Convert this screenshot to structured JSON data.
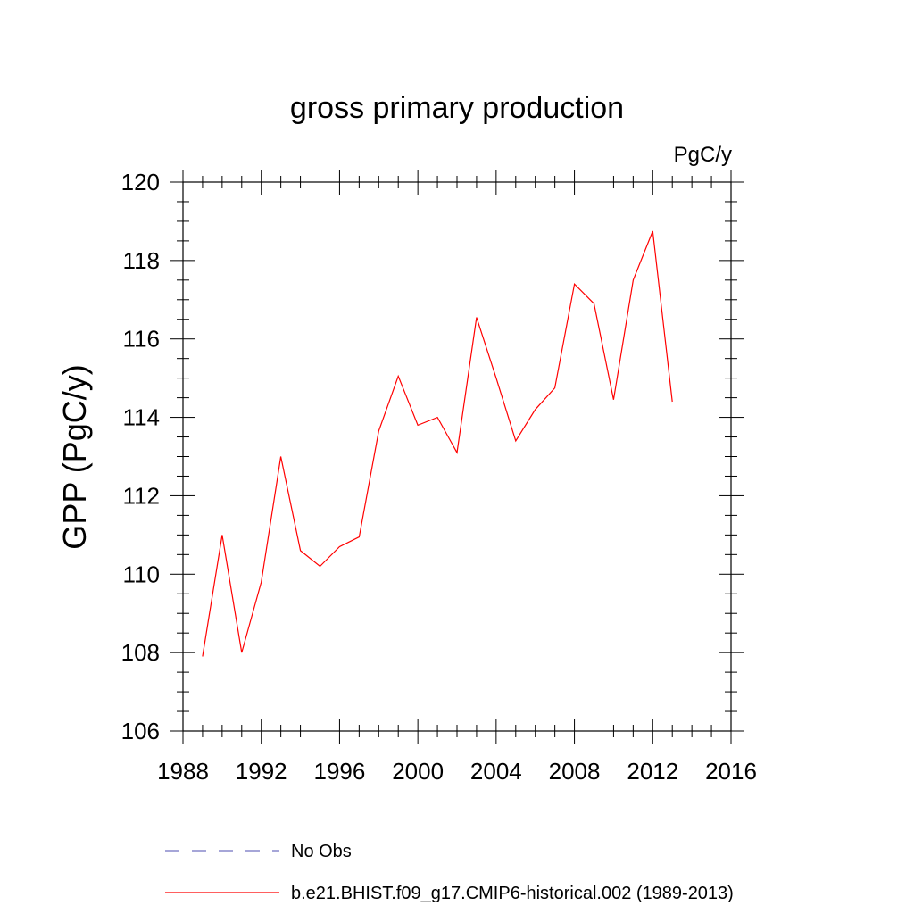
{
  "chart_data": {
    "type": "line",
    "title": "gross primary production",
    "units": "PgC/y",
    "xlabel": "",
    "ylabel": "GPP  (PgC/y)",
    "xlim": [
      1988,
      2016
    ],
    "ylim": [
      106,
      120
    ],
    "x_ticks": [
      1988,
      1992,
      1996,
      2000,
      2004,
      2008,
      2012,
      2016
    ],
    "y_ticks": [
      106,
      108,
      110,
      112,
      114,
      116,
      118,
      120
    ],
    "grid": false,
    "legend_placement": "below plot",
    "series": [
      {
        "name": "b.e21.BHIST.f09_g17.CMIP6-historical.002 (1989-2013)",
        "color": "#ff0000",
        "style": "solid",
        "x": [
          1989,
          1990,
          1991,
          1992,
          1993,
          1994,
          1995,
          1996,
          1997,
          1998,
          1999,
          2000,
          2001,
          2002,
          2003,
          2004,
          2005,
          2006,
          2007,
          2008,
          2009,
          2010,
          2011,
          2012,
          2013
        ],
        "y": [
          107.9,
          111.0,
          108.0,
          109.8,
          113.0,
          110.6,
          110.2,
          110.7,
          110.95,
          113.65,
          115.05,
          113.8,
          114.0,
          113.1,
          116.55,
          115.0,
          113.4,
          114.2,
          114.75,
          117.4,
          116.9,
          114.45,
          117.5,
          118.75,
          114.4
        ]
      }
    ],
    "legend": [
      {
        "label": "No Obs",
        "color": "#7070c0",
        "style": "dashed"
      },
      {
        "label": "b.e21.BHIST.f09_g17.CMIP6-historical.002 (1989-2013)",
        "color": "#ff0000",
        "style": "solid"
      }
    ]
  }
}
